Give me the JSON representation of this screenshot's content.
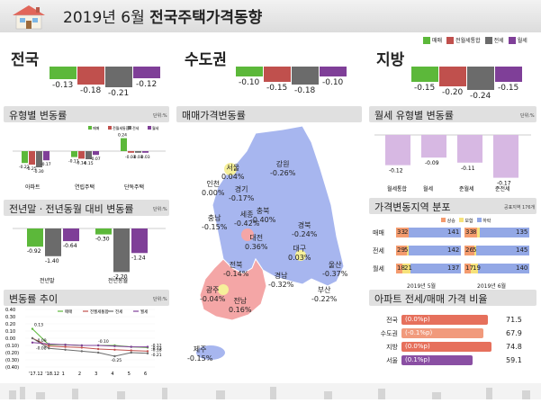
{
  "header": {
    "date": "2019년 6월",
    "title": "전국주택가격동향"
  },
  "legend": [
    "매매",
    "전월세통합",
    "전세",
    "월세"
  ],
  "colors": {
    "sale": "#5cb83a",
    "combined": "#c0504d",
    "jeonse": "#6b6b6b",
    "monthly": "#7f3f98"
  },
  "regions": [
    {
      "name": "전국",
      "values": [
        "-0.13",
        "-0.18",
        "-0.21",
        "-0.12"
      ]
    },
    {
      "name": "수도권",
      "values": [
        "-0.10",
        "-0.15",
        "-0.18",
        "-0.10"
      ]
    },
    {
      "name": "지방",
      "values": [
        "-0.15",
        "-0.20",
        "-0.24",
        "-0.15"
      ]
    }
  ],
  "unit": "단위:%",
  "type_change": {
    "title": "유형별 변동률",
    "legend": [
      "매매",
      "전월세통합",
      "전세",
      "월세"
    ],
    "groups": [
      {
        "label": "아파트",
        "values": [
          "-0.22",
          "-0.25",
          "-0.30",
          "-0.17"
        ]
      },
      {
        "label": "연립주택",
        "values": [
          "-0.11",
          "-0.14",
          "-0.15",
          "-0.07"
        ]
      },
      {
        "label": "단독주택",
        "values": [
          "0.24",
          "-0.03",
          "-0.03",
          "-0.03"
        ]
      }
    ]
  },
  "year_compare": {
    "title": "전년말ㆍ전년동월 대비 변동률",
    "groups": [
      {
        "label": "전년말",
        "values": [
          "-0.92",
          "-1.40",
          "-0.64"
        ]
      },
      {
        "label": "전년동월",
        "values": [
          "-0.30",
          "-2.20",
          "-1.24"
        ]
      }
    ]
  },
  "trend": {
    "title": "변동률 추이",
    "legend": [
      "매매",
      "전월세통합",
      "전세",
      "월세"
    ],
    "x": [
      "'17.12",
      "'18.12",
      "1",
      "2",
      "3",
      "4",
      "5",
      "6"
    ],
    "y_ticks": [
      "0.40",
      "0.30",
      "0.20",
      "0.10",
      "0.00",
      "(0.10)",
      "(0.20)",
      "(0.30)",
      "(0.40)"
    ],
    "labels": [
      "0.13",
      "-0.09",
      "-0.10",
      "-0.12",
      "-0.13",
      "-0.18",
      "-0.21",
      "-0.25",
      "-0.08"
    ],
    "series": [
      {
        "name": "매매",
        "values": [
          0.13,
          -0.09,
          -0.09,
          -0.1,
          -0.1,
          -0.1,
          -0.12,
          -0.13
        ]
      },
      {
        "name": "전월세통합",
        "values": [
          0.0,
          -0.11,
          -0.12,
          -0.13,
          -0.15,
          -0.16,
          -0.17,
          -0.18
        ]
      },
      {
        "name": "전세",
        "values": [
          0.0,
          -0.14,
          -0.16,
          -0.18,
          -0.2,
          -0.25,
          -0.2,
          -0.21
        ]
      },
      {
        "name": "월세",
        "values": [
          -0.06,
          -0.08,
          -0.09,
          -0.1,
          -0.1,
          -0.11,
          -0.12,
          -0.12
        ]
      }
    ]
  },
  "map": {
    "title": "매매가격변동률",
    "items": [
      {
        "name": "서울",
        "value": "0.04%"
      },
      {
        "name": "인천",
        "value": "0.00%"
      },
      {
        "name": "경기",
        "value": "-0.17%"
      },
      {
        "name": "강원",
        "value": "-0.26%"
      },
      {
        "name": "세종",
        "value": "-0.42%"
      },
      {
        "name": "충남",
        "value": "-0.15%"
      },
      {
        "name": "충북",
        "value": "-0.40%"
      },
      {
        "name": "대전",
        "value": "0.36%"
      },
      {
        "name": "경북",
        "value": "-0.24%"
      },
      {
        "name": "대구",
        "value": "0.03%"
      },
      {
        "name": "전북",
        "value": "-0.14%"
      },
      {
        "name": "울산",
        "value": "-0.37%"
      },
      {
        "name": "경남",
        "value": "-0.32%"
      },
      {
        "name": "부산",
        "value": "-0.22%"
      },
      {
        "name": "광주",
        "value": "-0.04%"
      },
      {
        "name": "전남",
        "value": "0.16%"
      },
      {
        "name": "제주",
        "value": "-0.15%"
      }
    ]
  },
  "monthly_type": {
    "title": "월세 유형별 변동률",
    "items": [
      {
        "label": "월세통합",
        "value": "-0.12"
      },
      {
        "label": "월세",
        "value": "-0.09"
      },
      {
        "label": "준월세",
        "value": "-0.11"
      },
      {
        "label": "준전세",
        "value": "-0.17"
      }
    ]
  },
  "distribution": {
    "title": "가격변동지역 분포",
    "unit": "공표지역 176개",
    "legend": [
      "상승",
      "보합",
      "하락"
    ],
    "rows": [
      {
        "label": "매매",
        "may": [
          "33",
          "2",
          "141"
        ],
        "jun": [
          "33",
          "8",
          "135"
        ]
      },
      {
        "label": "전세",
        "may": [
          "29",
          "5",
          "142"
        ],
        "jun": [
          "26",
          "5",
          "145"
        ]
      },
      {
        "label": "월세",
        "may": [
          "18",
          "21",
          "137"
        ],
        "jun": [
          "17",
          "19",
          "140"
        ]
      }
    ],
    "cols": [
      "2019년 5월",
      "2019년 6월"
    ]
  },
  "ratio": {
    "title": "아파트 전세/매매 가격 비율",
    "rows": [
      {
        "label": "전국",
        "change": "(0.0%p)",
        "value": "71.5",
        "frac": 0.715
      },
      {
        "label": "수도권",
        "change": "(-0.1%p)",
        "value": "67.9",
        "frac": 0.679
      },
      {
        "label": "지방",
        "change": "(0.0%p)",
        "value": "74.8",
        "frac": 0.748
      },
      {
        "label": "서울",
        "change": "(0.1%p)",
        "value": "59.1",
        "frac": 0.591
      }
    ]
  }
}
